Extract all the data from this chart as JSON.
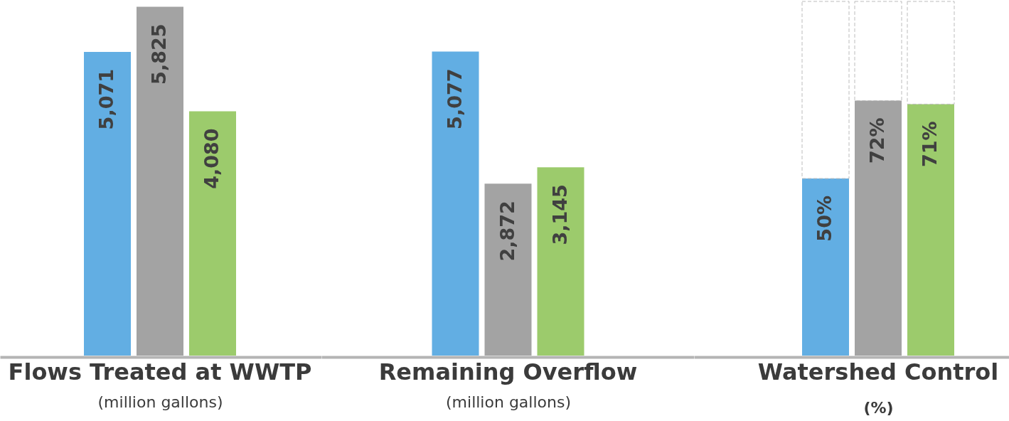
{
  "chart_data": [
    {
      "type": "bar",
      "categories": [
        "Flows Treated at WWTP"
      ],
      "xlabel": "(million gallons)",
      "series": [
        {
          "color": "#62aee3",
          "values": [
            5071
          ],
          "value_labels": [
            "5,071"
          ]
        },
        {
          "color": "#a3a3a3",
          "values": [
            5825
          ],
          "value_labels": [
            "5,825"
          ]
        },
        {
          "color": "#9ccb6c",
          "values": [
            4080
          ],
          "value_labels": [
            "4,080"
          ]
        }
      ],
      "tick_labels": "x"
    },
    {
      "type": "bar",
      "categories": [
        "Remaining Overflow"
      ],
      "xlabel": "(million gallons)",
      "series": [
        {
          "color": "#62aee3",
          "values": [
            5077
          ],
          "value_labels": [
            "5,077"
          ]
        },
        {
          "color": "#a3a3a3",
          "values": [
            2872
          ],
          "value_labels": [
            "2,872"
          ]
        },
        {
          "color": "#9ccb6c",
          "values": [
            3145
          ],
          "value_labels": [
            "3,145"
          ]
        }
      ],
      "tick_labels": "x"
    },
    {
      "type": "bar",
      "categories": [
        "Watershed Control"
      ],
      "xlabel": "(%)",
      "series": [
        {
          "color": "#62aee3",
          "values": [
            50
          ],
          "value_labels": [
            "50%"
          ]
        },
        {
          "color": "#a3a3a3",
          "values": [
            72
          ],
          "value_labels": [
            "72%"
          ]
        },
        {
          "color": "#9ccb6c",
          "values": [
            71
          ],
          "value_labels": [
            "71%"
          ]
        }
      ],
      "ylim": [
        0,
        100
      ],
      "tick_labels": "x"
    }
  ]
}
